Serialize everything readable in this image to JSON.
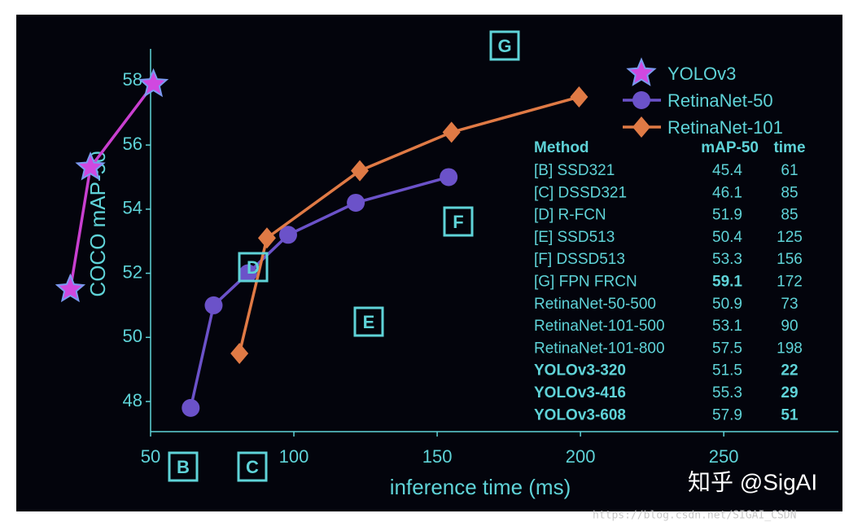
{
  "chart_data": {
    "type": "line",
    "xlabel": "inference time (ms)",
    "ylabel": "COCO mAP-50",
    "xlim": [
      50,
      290
    ],
    "ylim": [
      47.06,
      59
    ],
    "xticks": [
      50,
      100,
      150,
      200,
      250
    ],
    "yticks": [
      48,
      50,
      52,
      54,
      56,
      58
    ],
    "legend": "upper right",
    "series": [
      {
        "name": "YOLOv3",
        "color": "#c93fd0",
        "marker": "star",
        "x": [
          22,
          29,
          51
        ],
        "values": [
          51.5,
          55.3,
          57.9
        ]
      },
      {
        "name": "RetinaNet-50",
        "color": "#6b52c9",
        "marker": "circle",
        "x": [
          64,
          72,
          84,
          98,
          121.6,
          154
        ],
        "values": [
          47.8,
          51,
          52,
          53.2,
          54.2,
          55
        ]
      },
      {
        "name": "RetinaNet-101",
        "color": "#e07a45",
        "marker": "diamond",
        "x": [
          81,
          90.6,
          123,
          155,
          199.5
        ],
        "values": [
          49.5,
          53.1,
          55.2,
          56.4,
          57.5
        ]
      }
    ],
    "annotations": [
      "G",
      "F",
      "E",
      "D",
      "B",
      "C"
    ],
    "table": {
      "columns": [
        "Method",
        "mAP-50",
        "time"
      ],
      "rows": [
        [
          "[B] SSD321",
          45.4,
          61
        ],
        [
          "[C] DSSD321",
          46.1,
          85
        ],
        [
          "[D] R-FCN",
          51.9,
          85
        ],
        [
          "[E] SSD513",
          50.4,
          125
        ],
        [
          "[F] DSSD513",
          53.3,
          156
        ],
        [
          "[G] FPN FRCN",
          59.1,
          172
        ],
        [
          "RetinaNet-50-500",
          50.9,
          73
        ],
        [
          "RetinaNet-101-500",
          53.1,
          90
        ],
        [
          "RetinaNet-101-800",
          57.5,
          198
        ],
        [
          "YOLOv3-320",
          51.5,
          22
        ],
        [
          "YOLOv3-416",
          55.3,
          29
        ],
        [
          "YOLOv3-608",
          57.9,
          51
        ]
      ]
    },
    "watermarks": [
      "知乎 @SigAI",
      "https://blog.csdn.net/SIGAI_CSDN"
    ]
  }
}
